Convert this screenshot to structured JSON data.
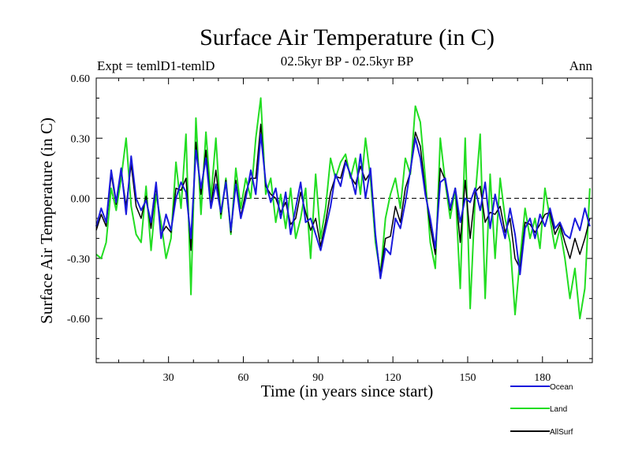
{
  "chart_data": {
    "type": "line",
    "title": "Surface Air Temperature (in C)",
    "subtitle": "02.5kyr BP - 02.5kyr BP",
    "left_label": "Expt = temlD1-temlD",
    "right_label": "Ann",
    "xlabel": "Time (in years since start)",
    "ylabel": "Surface Air Temperature (in C)",
    "xlim": [
      1,
      200
    ],
    "ylim": [
      -0.82,
      0.6
    ],
    "x_ticks": [
      30,
      60,
      90,
      120,
      150,
      180
    ],
    "x_tick_labels": [
      "30",
      "60",
      "90",
      "120",
      "150",
      "180"
    ],
    "y_ticks": [
      0.6,
      0.3,
      0.0,
      -0.3,
      -0.6
    ],
    "y_tick_labels": [
      "0.60",
      "0.30",
      "0.00",
      "-0.30",
      "-0.60"
    ],
    "zero_line": "dashed",
    "colors": {
      "ocean": "#1a1adc",
      "land": "#22dd22",
      "allsurf": "#000000"
    },
    "series": [
      {
        "name": "Ocean",
        "color": "#1a1adc",
        "points": [
          [
            1,
            -0.14
          ],
          [
            3,
            -0.05
          ],
          [
            5,
            -0.12
          ],
          [
            7,
            0.14
          ],
          [
            9,
            -0.02
          ],
          [
            11,
            0.15
          ],
          [
            13,
            -0.08
          ],
          [
            15,
            0.21
          ],
          [
            17,
            0.0
          ],
          [
            19,
            -0.06
          ],
          [
            21,
            -0.01
          ],
          [
            23,
            -0.12
          ],
          [
            25,
            0.08
          ],
          [
            27,
            -0.2
          ],
          [
            29,
            -0.08
          ],
          [
            31,
            -0.16
          ],
          [
            33,
            0.0
          ],
          [
            35,
            0.08
          ],
          [
            37,
            0.03
          ],
          [
            39,
            -0.2
          ],
          [
            41,
            0.24
          ],
          [
            43,
            0.05
          ],
          [
            45,
            0.2
          ],
          [
            47,
            -0.05
          ],
          [
            49,
            0.07
          ],
          [
            51,
            -0.07
          ],
          [
            53,
            0.08
          ],
          [
            55,
            -0.16
          ],
          [
            57,
            0.07
          ],
          [
            59,
            -0.1
          ],
          [
            61,
            0.0
          ],
          [
            63,
            0.14
          ],
          [
            65,
            0.02
          ],
          [
            67,
            0.32
          ],
          [
            69,
            0.08
          ],
          [
            71,
            -0.02
          ],
          [
            73,
            0.05
          ],
          [
            75,
            -0.1
          ],
          [
            77,
            0.03
          ],
          [
            79,
            -0.18
          ],
          [
            81,
            -0.05
          ],
          [
            83,
            0.08
          ],
          [
            85,
            -0.12
          ],
          [
            87,
            -0.1
          ],
          [
            89,
            -0.18
          ],
          [
            91,
            -0.26
          ],
          [
            93,
            -0.15
          ],
          [
            95,
            -0.04
          ],
          [
            97,
            0.12
          ],
          [
            99,
            0.06
          ],
          [
            101,
            0.18
          ],
          [
            103,
            0.12
          ],
          [
            105,
            0.02
          ],
          [
            107,
            0.22
          ],
          [
            109,
            0.0
          ],
          [
            111,
            0.15
          ],
          [
            113,
            -0.18
          ],
          [
            115,
            -0.4
          ],
          [
            117,
            -0.25
          ],
          [
            119,
            -0.28
          ],
          [
            121,
            -0.1
          ],
          [
            123,
            -0.15
          ],
          [
            125,
            -0.02
          ],
          [
            127,
            0.14
          ],
          [
            129,
            0.3
          ],
          [
            131,
            0.2
          ],
          [
            133,
            0.02
          ],
          [
            135,
            -0.1
          ],
          [
            137,
            -0.25
          ],
          [
            139,
            0.08
          ],
          [
            141,
            0.1
          ],
          [
            143,
            -0.05
          ],
          [
            145,
            0.05
          ],
          [
            147,
            -0.12
          ],
          [
            149,
            0.0
          ],
          [
            151,
            -0.02
          ],
          [
            153,
            0.05
          ],
          [
            155,
            -0.06
          ],
          [
            157,
            0.08
          ],
          [
            159,
            -0.15
          ],
          [
            161,
            0.02
          ],
          [
            163,
            -0.1
          ],
          [
            165,
            -0.2
          ],
          [
            167,
            -0.05
          ],
          [
            169,
            -0.18
          ],
          [
            171,
            -0.38
          ],
          [
            173,
            -0.15
          ],
          [
            175,
            -0.1
          ],
          [
            177,
            -0.2
          ],
          [
            179,
            -0.08
          ],
          [
            181,
            -0.14
          ],
          [
            183,
            -0.05
          ],
          [
            185,
            -0.15
          ],
          [
            187,
            -0.12
          ],
          [
            189,
            -0.18
          ],
          [
            191,
            -0.2
          ],
          [
            193,
            -0.1
          ],
          [
            195,
            -0.16
          ],
          [
            197,
            -0.05
          ],
          [
            199,
            -0.14
          ]
        ]
      },
      {
        "name": "Land",
        "color": "#22dd22",
        "points": [
          [
            1,
            -0.28
          ],
          [
            3,
            -0.3
          ],
          [
            5,
            -0.22
          ],
          [
            7,
            0.05
          ],
          [
            9,
            -0.06
          ],
          [
            11,
            0.1
          ],
          [
            13,
            0.3
          ],
          [
            15,
            -0.04
          ],
          [
            17,
            -0.18
          ],
          [
            19,
            -0.22
          ],
          [
            21,
            0.06
          ],
          [
            23,
            -0.26
          ],
          [
            25,
            0.02
          ],
          [
            27,
            -0.12
          ],
          [
            29,
            -0.3
          ],
          [
            31,
            -0.2
          ],
          [
            33,
            0.18
          ],
          [
            35,
            -0.05
          ],
          [
            37,
            0.32
          ],
          [
            39,
            -0.48
          ],
          [
            41,
            0.4
          ],
          [
            43,
            -0.08
          ],
          [
            45,
            0.33
          ],
          [
            47,
            0.0
          ],
          [
            49,
            0.3
          ],
          [
            51,
            -0.1
          ],
          [
            53,
            0.1
          ],
          [
            55,
            -0.18
          ],
          [
            57,
            0.15
          ],
          [
            59,
            -0.05
          ],
          [
            61,
            0.1
          ],
          [
            63,
            0.0
          ],
          [
            65,
            0.3
          ],
          [
            67,
            0.5
          ],
          [
            69,
            0.02
          ],
          [
            71,
            0.1
          ],
          [
            73,
            -0.12
          ],
          [
            75,
            0.02
          ],
          [
            77,
            -0.15
          ],
          [
            79,
            0.05
          ],
          [
            81,
            -0.2
          ],
          [
            83,
            -0.1
          ],
          [
            85,
            0.05
          ],
          [
            87,
            -0.3
          ],
          [
            89,
            0.12
          ],
          [
            91,
            -0.2
          ],
          [
            93,
            -0.05
          ],
          [
            95,
            0.2
          ],
          [
            97,
            0.1
          ],
          [
            99,
            0.18
          ],
          [
            101,
            0.22
          ],
          [
            103,
            0.1
          ],
          [
            105,
            0.2
          ],
          [
            107,
            0.02
          ],
          [
            109,
            0.3
          ],
          [
            111,
            0.1
          ],
          [
            113,
            -0.22
          ],
          [
            115,
            -0.38
          ],
          [
            117,
            -0.1
          ],
          [
            119,
            0.02
          ],
          [
            121,
            0.1
          ],
          [
            123,
            -0.05
          ],
          [
            125,
            0.2
          ],
          [
            127,
            0.12
          ],
          [
            129,
            0.46
          ],
          [
            131,
            0.38
          ],
          [
            133,
            0.1
          ],
          [
            135,
            -0.22
          ],
          [
            137,
            -0.35
          ],
          [
            139,
            0.3
          ],
          [
            141,
            0.08
          ],
          [
            143,
            -0.1
          ],
          [
            145,
            0.05
          ],
          [
            147,
            -0.45
          ],
          [
            149,
            0.3
          ],
          [
            151,
            -0.55
          ],
          [
            153,
            0.0
          ],
          [
            155,
            0.32
          ],
          [
            157,
            -0.5
          ],
          [
            159,
            0.12
          ],
          [
            161,
            -0.3
          ],
          [
            163,
            0.1
          ],
          [
            165,
            -0.1
          ],
          [
            167,
            -0.22
          ],
          [
            169,
            -0.58
          ],
          [
            171,
            -0.3
          ],
          [
            173,
            -0.05
          ],
          [
            175,
            -0.2
          ],
          [
            177,
            -0.1
          ],
          [
            179,
            -0.25
          ],
          [
            181,
            0.05
          ],
          [
            183,
            -0.1
          ],
          [
            185,
            -0.25
          ],
          [
            187,
            -0.15
          ],
          [
            189,
            -0.3
          ],
          [
            191,
            -0.5
          ],
          [
            193,
            -0.35
          ],
          [
            195,
            -0.6
          ],
          [
            197,
            -0.45
          ],
          [
            199,
            0.05
          ]
        ]
      },
      {
        "name": "AllSurf",
        "color": "#000000",
        "points": [
          [
            1,
            -0.16
          ],
          [
            3,
            -0.08
          ],
          [
            5,
            -0.14
          ],
          [
            7,
            0.12
          ],
          [
            9,
            -0.03
          ],
          [
            11,
            0.14
          ],
          [
            13,
            -0.04
          ],
          [
            15,
            0.17
          ],
          [
            17,
            -0.04
          ],
          [
            19,
            -0.1
          ],
          [
            21,
            0.01
          ],
          [
            23,
            -0.15
          ],
          [
            25,
            0.06
          ],
          [
            27,
            -0.18
          ],
          [
            29,
            -0.14
          ],
          [
            31,
            -0.17
          ],
          [
            33,
            0.05
          ],
          [
            35,
            0.04
          ],
          [
            37,
            0.1
          ],
          [
            39,
            -0.26
          ],
          [
            41,
            0.28
          ],
          [
            43,
            0.02
          ],
          [
            45,
            0.24
          ],
          [
            47,
            -0.04
          ],
          [
            49,
            0.14
          ],
          [
            51,
            -0.08
          ],
          [
            53,
            0.09
          ],
          [
            55,
            -0.17
          ],
          [
            57,
            0.09
          ],
          [
            59,
            -0.09
          ],
          [
            61,
            0.03
          ],
          [
            63,
            0.1
          ],
          [
            65,
            0.1
          ],
          [
            67,
            0.37
          ],
          [
            69,
            0.06
          ],
          [
            71,
            0.02
          ],
          [
            73,
            0.0
          ],
          [
            75,
            -0.07
          ],
          [
            77,
            -0.02
          ],
          [
            79,
            -0.13
          ],
          [
            81,
            -0.1
          ],
          [
            83,
            0.03
          ],
          [
            85,
            -0.07
          ],
          [
            87,
            -0.16
          ],
          [
            89,
            -0.1
          ],
          [
            91,
            -0.24
          ],
          [
            93,
            -0.12
          ],
          [
            95,
            0.03
          ],
          [
            97,
            0.11
          ],
          [
            99,
            0.1
          ],
          [
            101,
            0.19
          ],
          [
            103,
            0.11
          ],
          [
            105,
            0.07
          ],
          [
            107,
            0.16
          ],
          [
            109,
            0.09
          ],
          [
            111,
            0.13
          ],
          [
            113,
            -0.19
          ],
          [
            115,
            -0.38
          ],
          [
            117,
            -0.2
          ],
          [
            119,
            -0.19
          ],
          [
            121,
            -0.04
          ],
          [
            123,
            -0.12
          ],
          [
            125,
            0.05
          ],
          [
            127,
            0.13
          ],
          [
            129,
            0.33
          ],
          [
            131,
            0.26
          ],
          [
            133,
            0.04
          ],
          [
            135,
            -0.14
          ],
          [
            137,
            -0.28
          ],
          [
            139,
            0.15
          ],
          [
            141,
            0.09
          ],
          [
            143,
            -0.06
          ],
          [
            145,
            0.05
          ],
          [
            147,
            -0.22
          ],
          [
            149,
            0.09
          ],
          [
            151,
            -0.2
          ],
          [
            153,
            0.03
          ],
          [
            155,
            0.06
          ],
          [
            157,
            -0.12
          ],
          [
            159,
            -0.07
          ],
          [
            161,
            -0.08
          ],
          [
            163,
            -0.04
          ],
          [
            165,
            -0.17
          ],
          [
            167,
            -0.1
          ],
          [
            169,
            -0.3
          ],
          [
            171,
            -0.35
          ],
          [
            173,
            -0.12
          ],
          [
            175,
            -0.13
          ],
          [
            177,
            -0.17
          ],
          [
            179,
            -0.13
          ],
          [
            181,
            -0.08
          ],
          [
            183,
            -0.07
          ],
          [
            185,
            -0.18
          ],
          [
            187,
            -0.13
          ],
          [
            189,
            -0.22
          ],
          [
            191,
            -0.3
          ],
          [
            193,
            -0.2
          ],
          [
            195,
            -0.28
          ],
          [
            197,
            -0.2
          ],
          [
            199,
            -0.1
          ]
        ]
      }
    ],
    "legend": [
      {
        "label": "Ocean",
        "color": "#1a1adc"
      },
      {
        "label": "Land",
        "color": "#22dd22"
      },
      {
        "label": "AllSurf",
        "color": "#000000"
      }
    ],
    "legend_position": "bottom-right"
  }
}
